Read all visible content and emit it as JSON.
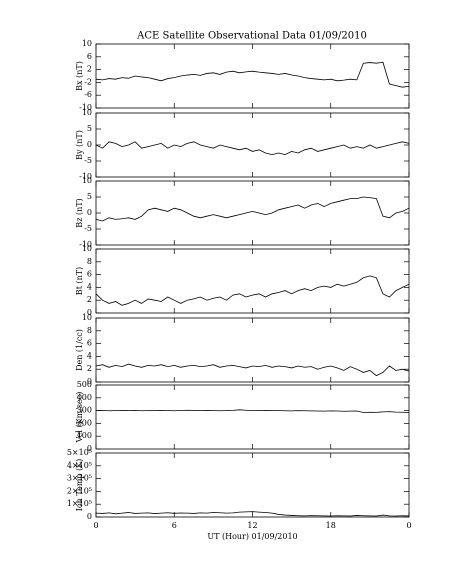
{
  "chart_data": [
    {
      "type": "line",
      "title": "ACE Satellite Observational Data  01/09/2010",
      "ylabel": "Bx (nT)",
      "color": "#000000",
      "xlim": [
        0,
        24
      ],
      "ylim": [
        -10,
        10
      ],
      "yticks": [
        -10,
        -6,
        -2,
        2,
        6,
        10
      ],
      "x": [
        0,
        0.5,
        1,
        1.5,
        2,
        2.5,
        3,
        3.5,
        4,
        4.5,
        5,
        5.5,
        6,
        6.5,
        7,
        7.5,
        8,
        8.5,
        9,
        9.5,
        10,
        10.5,
        11,
        11.5,
        12,
        12.5,
        13,
        13.5,
        14,
        14.5,
        15,
        15.5,
        16,
        16.5,
        17,
        17.5,
        18,
        18.5,
        19,
        19.5,
        20,
        20.5,
        21,
        21.5,
        22,
        22.5,
        23,
        23.5,
        24
      ],
      "values": [
        -1,
        -1.2,
        -0.8,
        -1,
        -0.5,
        -0.7,
        0,
        -0.3,
        -0.5,
        -1,
        -1.5,
        -0.8,
        -0.5,
        0,
        0.3,
        0.5,
        0.2,
        0.8,
        1,
        0.5,
        1.2,
        1.5,
        1,
        1.3,
        1.5,
        1.2,
        1,
        0.8,
        0.5,
        0.8,
        0.3,
        0,
        -0.5,
        -0.8,
        -1,
        -1.2,
        -1,
        -1.5,
        -1.3,
        -1,
        -1.2,
        4,
        4.2,
        4,
        4.3,
        -2.5,
        -3,
        -3.5,
        -3.2
      ]
    },
    {
      "type": "line",
      "ylabel": "By (nT)",
      "color": "#000000",
      "xlim": [
        0,
        24
      ],
      "ylim": [
        -10,
        10
      ],
      "yticks": [
        -10,
        -5,
        0,
        5,
        10
      ],
      "x": [
        0,
        0.5,
        1,
        1.5,
        2,
        2.5,
        3,
        3.5,
        4,
        4.5,
        5,
        5.5,
        6,
        6.5,
        7,
        7.5,
        8,
        8.5,
        9,
        9.5,
        10,
        10.5,
        11,
        11.5,
        12,
        12.5,
        13,
        13.5,
        14,
        14.5,
        15,
        15.5,
        16,
        16.5,
        17,
        17.5,
        18,
        18.5,
        19,
        19.5,
        20,
        20.5,
        21,
        21.5,
        22,
        22.5,
        23,
        23.5,
        24
      ],
      "values": [
        0,
        -1,
        1,
        0.5,
        -0.5,
        0,
        1,
        -1,
        -0.5,
        0,
        0.5,
        -1,
        0,
        -0.5,
        0.5,
        1,
        0,
        -0.5,
        -1,
        0,
        -0.5,
        -1,
        -1.5,
        -1,
        -2,
        -1.5,
        -2.5,
        -3,
        -2.5,
        -3,
        -2,
        -2.5,
        -1.5,
        -1,
        -2,
        -1.5,
        -1,
        -0.5,
        0,
        -1,
        -0.5,
        -1,
        0,
        -1,
        -0.5,
        0,
        0.5,
        1,
        0.5
      ]
    },
    {
      "type": "line",
      "ylabel": "Bz (nT)",
      "color": "#000000",
      "xlim": [
        0,
        24
      ],
      "ylim": [
        -10,
        10
      ],
      "yticks": [
        -10,
        -5,
        0,
        5,
        10
      ],
      "x": [
        0,
        0.5,
        1,
        1.5,
        2,
        2.5,
        3,
        3.5,
        4,
        4.5,
        5,
        5.5,
        6,
        6.5,
        7,
        7.5,
        8,
        8.5,
        9,
        9.5,
        10,
        10.5,
        11,
        11.5,
        12,
        12.5,
        13,
        13.5,
        14,
        14.5,
        15,
        15.5,
        16,
        16.5,
        17,
        17.5,
        18,
        18.5,
        19,
        19.5,
        20,
        20.5,
        21,
        21.5,
        22,
        22.5,
        23,
        23.5,
        24
      ],
      "values": [
        -2,
        -2.5,
        -1.5,
        -2,
        -1.8,
        -1.5,
        -2,
        -1,
        1,
        1.5,
        1,
        0.5,
        1.5,
        1,
        0,
        -1,
        -1.5,
        -1,
        -0.5,
        -1,
        -1.5,
        -1,
        -0.5,
        0,
        0.5,
        0,
        -0.5,
        0,
        1,
        1.5,
        2,
        2.5,
        1.5,
        2.5,
        3,
        2,
        3,
        3.5,
        4,
        4.5,
        4.5,
        5,
        4.8,
        4.5,
        -1,
        -1.5,
        0,
        0.5,
        1.5
      ]
    },
    {
      "type": "line",
      "ylabel": "Bt (nT)",
      "color": "#000000",
      "xlim": [
        0,
        24
      ],
      "ylim": [
        0,
        10
      ],
      "yticks": [
        0,
        2,
        4,
        6,
        8,
        10
      ],
      "x": [
        0,
        0.5,
        1,
        1.5,
        2,
        2.5,
        3,
        3.5,
        4,
        4.5,
        5,
        5.5,
        6,
        6.5,
        7,
        7.5,
        8,
        8.5,
        9,
        9.5,
        10,
        10.5,
        11,
        11.5,
        12,
        12.5,
        13,
        13.5,
        14,
        14.5,
        15,
        15.5,
        16,
        16.5,
        17,
        17.5,
        18,
        18.5,
        19,
        19.5,
        20,
        20.5,
        21,
        21.5,
        22,
        22.5,
        23,
        23.5,
        24
      ],
      "values": [
        3,
        2,
        1.5,
        1.8,
        1.2,
        1.5,
        2,
        1.5,
        2.2,
        2,
        1.8,
        2.5,
        2,
        1.5,
        2,
        2.2,
        2.5,
        2,
        2.3,
        2.5,
        2,
        2.8,
        3,
        2.5,
        2.8,
        3,
        2.5,
        3,
        3.2,
        3.5,
        3,
        3.5,
        3.8,
        3.5,
        4,
        4.2,
        4,
        4.5,
        4.2,
        4.5,
        4.8,
        5.5,
        5.8,
        5.5,
        3,
        2.5,
        3.5,
        4,
        4.5
      ]
    },
    {
      "type": "line",
      "ylabel": "Den (1/cc)",
      "color": "#000000",
      "xlim": [
        0,
        24
      ],
      "ylim": [
        0,
        10
      ],
      "yticks": [
        0,
        2,
        4,
        6,
        8,
        10
      ],
      "x": [
        0,
        0.5,
        1,
        1.5,
        2,
        2.5,
        3,
        3.5,
        4,
        4.5,
        5,
        5.5,
        6,
        6.5,
        7,
        7.5,
        8,
        8.5,
        9,
        9.5,
        10,
        10.5,
        11,
        11.5,
        12,
        12.5,
        13,
        13.5,
        14,
        14.5,
        15,
        15.5,
        16,
        16.5,
        17,
        17.5,
        18,
        18.5,
        19,
        19.5,
        20,
        20.5,
        21,
        21.5,
        22,
        22.5,
        23,
        23.5,
        24
      ],
      "values": [
        2.5,
        2.7,
        2.3,
        2.6,
        2.4,
        2.8,
        2.5,
        2.3,
        2.6,
        2.5,
        2.7,
        2.4,
        2.6,
        2.3,
        2.5,
        2.6,
        2.4,
        2.5,
        2.7,
        2.3,
        2.5,
        2.6,
        2.4,
        2.2,
        2.5,
        2.4,
        2.6,
        2.3,
        2.5,
        2.4,
        2.2,
        2.5,
        2.3,
        2.4,
        2,
        2.3,
        2.5,
        2.2,
        1.8,
        2.4,
        2,
        1.5,
        1.8,
        1,
        1.5,
        2.5,
        1.8,
        2,
        1.7
      ]
    },
    {
      "type": "line",
      "ylabel": "Vel (Km/sec)",
      "color": "#000000",
      "xlim": [
        0,
        24
      ],
      "ylim": [
        0,
        500
      ],
      "yticks": [
        0,
        100,
        200,
        300,
        400,
        500
      ],
      "x": [
        0,
        0.5,
        1,
        1.5,
        2,
        2.5,
        3,
        3.5,
        4,
        4.5,
        5,
        5.5,
        6,
        6.5,
        7,
        7.5,
        8,
        8.5,
        9,
        9.5,
        10,
        10.5,
        11,
        11.5,
        12,
        12.5,
        13,
        13.5,
        14,
        14.5,
        15,
        15.5,
        16,
        16.5,
        17,
        17.5,
        18,
        18.5,
        19,
        19.5,
        20,
        20.5,
        21,
        21.5,
        22,
        22.5,
        23,
        23.5,
        24
      ],
      "values": [
        300,
        301,
        299,
        300,
        302,
        300,
        301,
        299,
        300,
        301,
        302,
        300,
        299,
        301,
        303,
        302,
        300,
        301,
        300,
        299,
        300,
        302,
        306,
        303,
        301,
        300,
        302,
        301,
        300,
        299,
        298,
        300,
        299,
        298,
        297,
        296,
        298,
        297,
        295,
        296,
        297,
        285,
        287,
        286,
        290,
        292,
        288,
        287,
        285
      ]
    },
    {
      "type": "line",
      "ylabel": "Ion Temp (K)",
      "xlabel": "UT (Hour)  01/09/2010",
      "color": "#000000",
      "xlim": [
        0,
        24
      ],
      "ylim": [
        0,
        500000
      ],
      "yticks": [
        0,
        {
          "value": 100000,
          "label": "1×10⁵"
        },
        {
          "value": 200000,
          "label": "2×10⁵"
        },
        {
          "value": 300000,
          "label": "3×10⁵"
        },
        {
          "value": 400000,
          "label": "4×10⁵"
        },
        {
          "value": 500000,
          "label": "5×10⁵"
        }
      ],
      "xticks": [
        0,
        6,
        12,
        18,
        {
          "value": 24,
          "label": "0"
        }
      ],
      "x": [
        0,
        0.5,
        1,
        1.5,
        2,
        2.5,
        3,
        3.5,
        4,
        4.5,
        5,
        5.5,
        6,
        6.5,
        7,
        7.5,
        8,
        8.5,
        9,
        9.5,
        10,
        10.5,
        11,
        11.5,
        12,
        12.5,
        13,
        13.5,
        14,
        14.5,
        15,
        15.5,
        16,
        16.5,
        17,
        17.5,
        18,
        18.5,
        19,
        19.5,
        20,
        20.5,
        21,
        21.5,
        22,
        22.5,
        23,
        23.5,
        24
      ],
      "values": [
        30000,
        28000,
        32000,
        25000,
        30000,
        35000,
        28000,
        30000,
        32000,
        27000,
        30000,
        33000,
        29000,
        31000,
        30000,
        28000,
        32000,
        30000,
        35000,
        33000,
        30000,
        32000,
        38000,
        40000,
        42000,
        38000,
        35000,
        30000,
        20000,
        15000,
        12000,
        10000,
        9000,
        11000,
        10000,
        9000,
        8000,
        10000,
        9000,
        8000,
        12000,
        10000,
        9000,
        8000,
        15000,
        9000,
        8000,
        10000,
        9000
      ]
    }
  ]
}
